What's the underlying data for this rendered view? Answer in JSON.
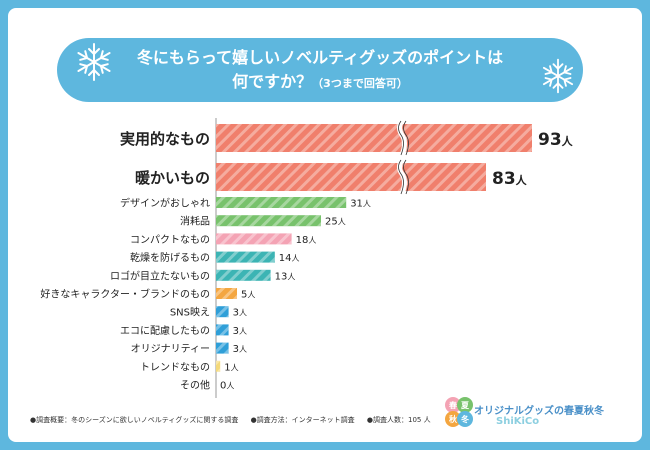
{
  "title": {
    "line1": "冬にもらって嬉しいノベルティグッズのポイントは",
    "line2": "何ですか？",
    "note": "（3つまで回答可）"
  },
  "chart_data": {
    "type": "bar",
    "orientation": "horizontal",
    "unit": "人",
    "categories": [
      "実用的なもの",
      "暖かいもの",
      "デザインがおしゃれ",
      "消耗品",
      "コンパクトなもの",
      "乾燥を防げるもの",
      "ロゴが目立たないもの",
      "好きなキャラクター・ブランドのもの",
      "SNS映え",
      "エコに配慮したもの",
      "オリジナリティー",
      "トレンドなもの",
      "その他"
    ],
    "values": [
      93,
      83,
      31,
      25,
      18,
      14,
      13,
      5,
      3,
      3,
      3,
      1,
      0
    ],
    "value_labels": [
      "93",
      "83",
      "31",
      "25",
      "18",
      "14",
      "13",
      "5",
      "3",
      "3",
      "3",
      "1",
      "0"
    ],
    "highlight_top": 2,
    "broken_axis": true,
    "colors": [
      "#f07f6c",
      "#f07f6c",
      "#78c26c",
      "#78c26c",
      "#f4a3b4",
      "#3cb4b4",
      "#3cb4b4",
      "#f4a640",
      "#2f9fd8",
      "#2f9fd8",
      "#2f9fd8",
      "#f4d97a",
      "#cccccc"
    ]
  },
  "footer": {
    "survey": "●調査概要：冬のシーズンに欲しいノベルティグッズに関する調査",
    "method": "●調査方法：インターネット調査",
    "count": "●調査人数：105 人"
  },
  "logo": {
    "name": "オリジナルグッズの春夏秋冬",
    "sub": "ShiKiCo",
    "seasons": [
      "春",
      "夏",
      "秋",
      "冬"
    ]
  },
  "colors": {
    "background": "#5eb7de",
    "title_pill": "#5eb7de"
  }
}
